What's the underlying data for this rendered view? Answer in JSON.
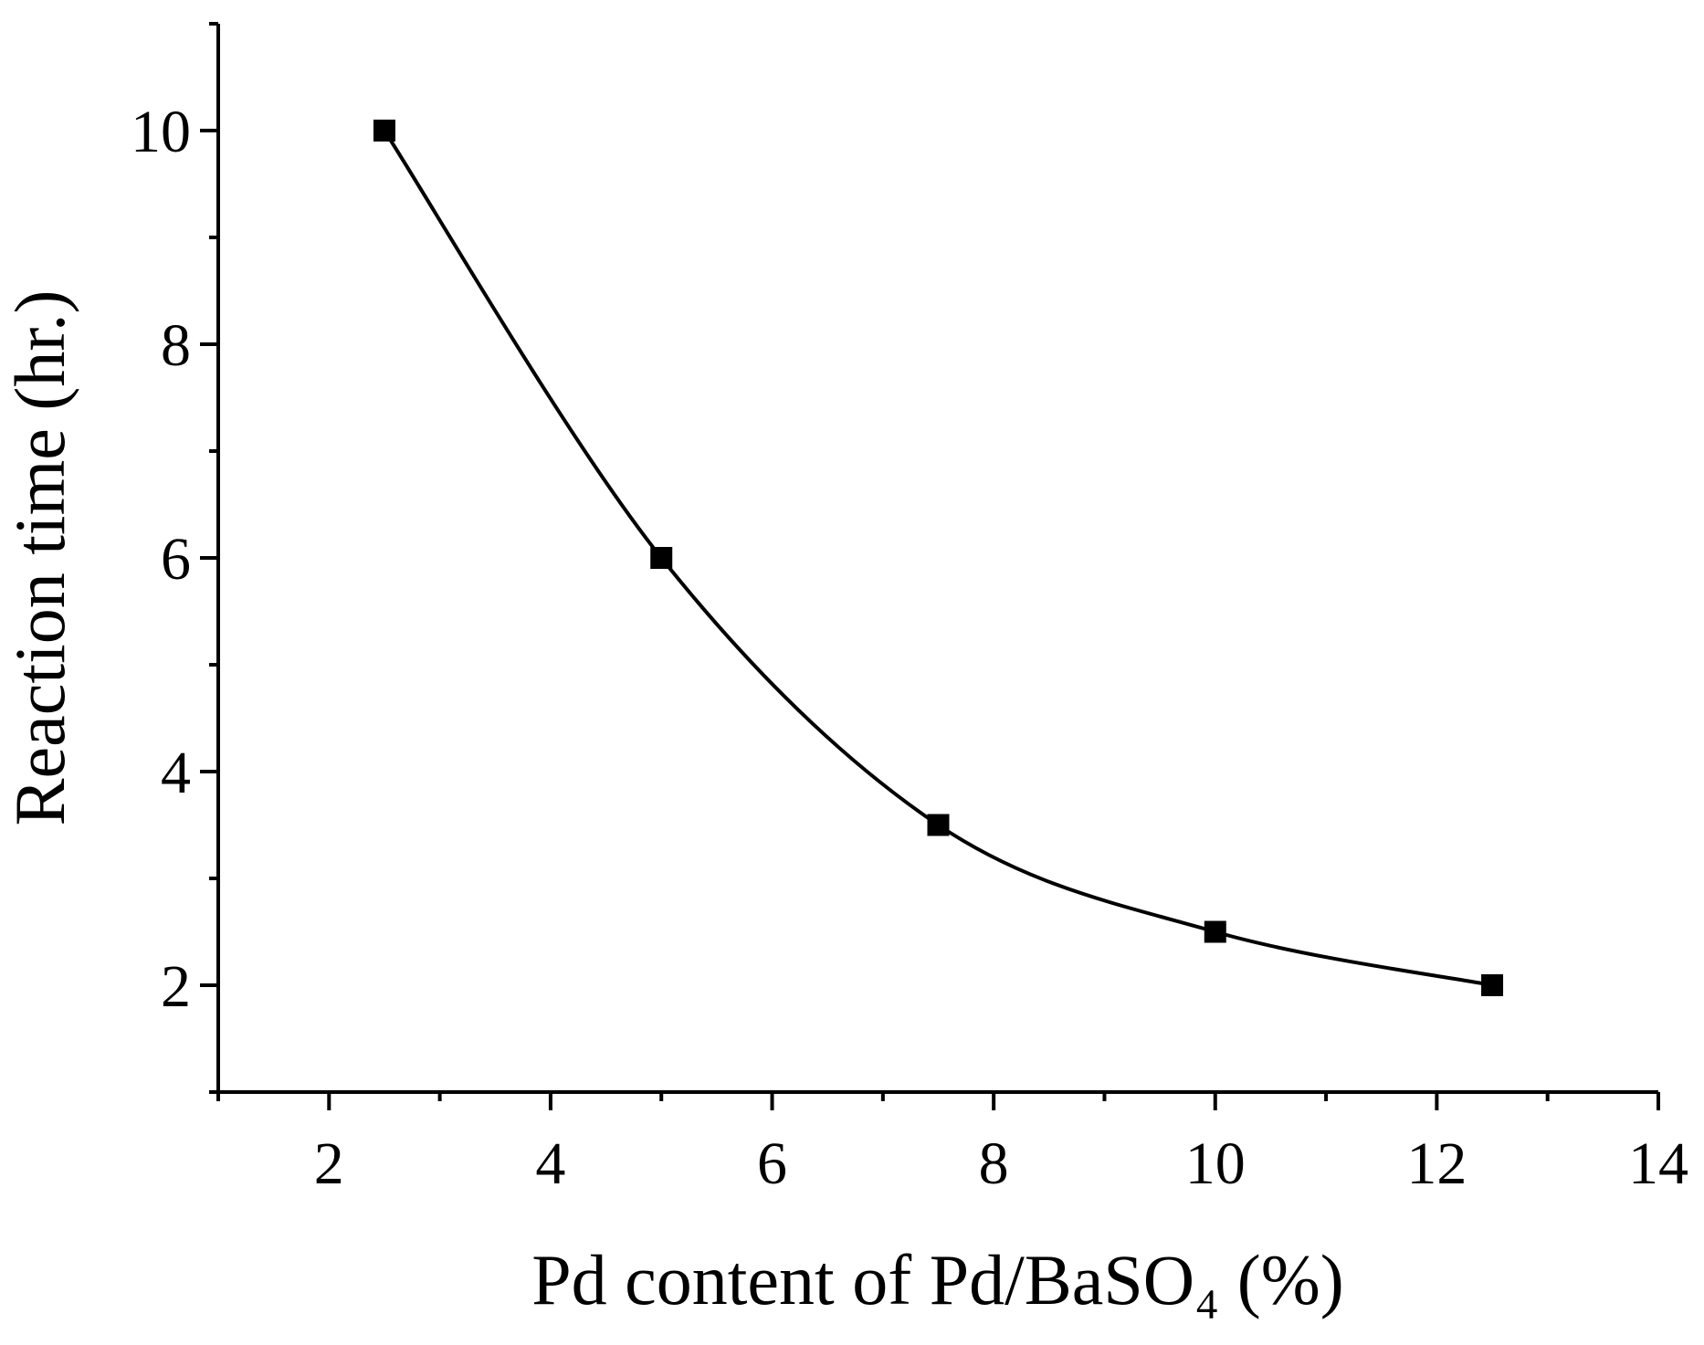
{
  "chart_data": {
    "type": "line",
    "x_label": "Pd content of Pd/BaSO₄ (%)",
    "y_label": "Reaction time (hr.)",
    "x": [
      2.5,
      5,
      7.5,
      10,
      12.5
    ],
    "series": [
      {
        "color": "#000000",
        "values": [
          10,
          6,
          3.5,
          2.5,
          2
        ]
      }
    ],
    "xlim": [
      1,
      14
    ],
    "xticks": [
      2,
      4,
      6,
      8,
      10,
      12,
      14
    ],
    "ylim": [
      1,
      11
    ],
    "yticks": [
      2,
      4,
      6,
      8,
      10
    ],
    "smooth": true,
    "marker": "square"
  }
}
